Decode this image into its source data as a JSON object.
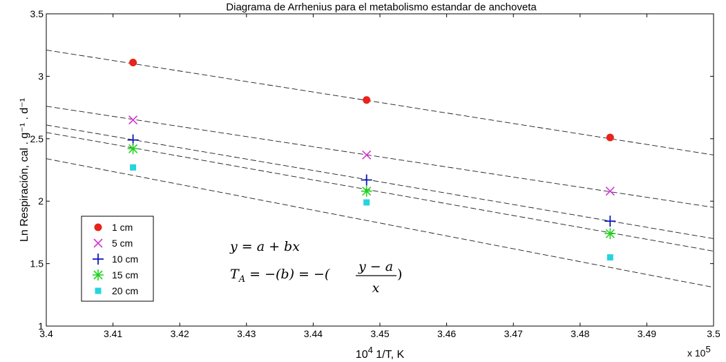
{
  "chart_data": {
    "type": "scatter",
    "title": "Diagrama de Arrhenius para el metabolismo estandar de anchoveta",
    "xlabel_base": "10",
    "xlabel_exp": "4",
    "xlabel_rest": " 1/T, K",
    "ylabel": "Ln Respiración, cal . g⁻¹ . d⁻¹",
    "x_multiplier_base": "x 10",
    "x_multiplier_exp": "5",
    "xlim": [
      3.4,
      3.5
    ],
    "ylim": [
      1,
      3.5
    ],
    "x_ticks": [
      "3.4",
      "3.41",
      "3.42",
      "3.43",
      "3.44",
      "3.45",
      "3.46",
      "3.47",
      "3.48",
      "3.49",
      "3.5"
    ],
    "y_ticks": [
      "1",
      "1.5",
      "2",
      "2.5",
      "3",
      "3.5"
    ],
    "x": [
      3.413,
      3.448,
      3.4845
    ],
    "series": [
      {
        "name": "1 cm",
        "marker": "circle",
        "color": "#e8231b",
        "values": [
          3.11,
          2.81,
          2.51
        ],
        "fit": [
          [
            3.4,
            3.21
          ],
          [
            3.5,
            2.37
          ]
        ]
      },
      {
        "name": "5 cm",
        "marker": "x",
        "color": "#d633d6",
        "values": [
          2.65,
          2.37,
          2.08
        ],
        "fit": [
          [
            3.4,
            2.76
          ],
          [
            3.5,
            1.95
          ]
        ]
      },
      {
        "name": "10 cm",
        "marker": "plus",
        "color": "#0b17b8",
        "values": [
          2.49,
          2.17,
          1.84
        ],
        "fit": [
          [
            3.4,
            2.61
          ],
          [
            3.5,
            1.7
          ]
        ]
      },
      {
        "name": "15 cm",
        "marker": "star",
        "color": "#22d11f",
        "values": [
          2.42,
          2.08,
          1.74
        ],
        "fit": [
          [
            3.4,
            2.55
          ],
          [
            3.5,
            1.6
          ]
        ]
      },
      {
        "name": "20 cm",
        "marker": "square",
        "color": "#27d3e0",
        "values": [
          2.27,
          1.99,
          1.55
        ],
        "fit": [
          [
            3.4,
            2.34
          ],
          [
            3.5,
            1.31
          ]
        ]
      }
    ],
    "legend_position": "lower-left",
    "grid": false
  },
  "equations": {
    "eq1": "y = a + bx",
    "eq2_lhs": "T",
    "eq2_sub": "A",
    "eq2_mid": " = −(b) = −(",
    "eq2_num": "y − a",
    "eq2_den": "x",
    "eq2_close": ")"
  }
}
